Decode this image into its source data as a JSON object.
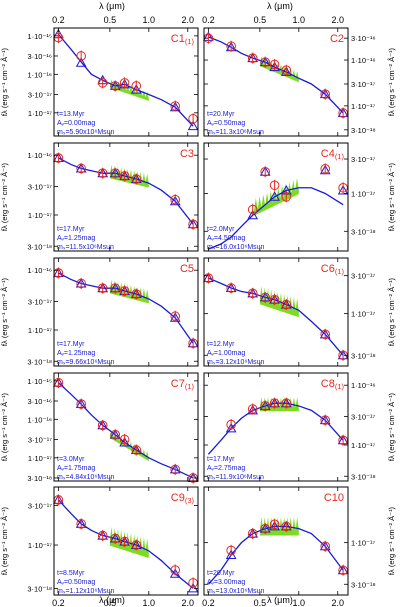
{
  "axes": {
    "x_label": "λ (μm)",
    "y_label_left": "fλ (erg s⁻¹ cm⁻² Å⁻¹)",
    "y_label_right": "fλ (erg s⁻¹ cm⁻² Å⁻¹)",
    "x_ticks": [
      {
        "value": 0.2,
        "label": "0.2"
      },
      {
        "value": 0.5,
        "label": "0.5"
      },
      {
        "value": 1.0,
        "label": "1.0"
      },
      {
        "value": 2.0,
        "label": "2.0"
      }
    ],
    "x_range": [
      0.185,
      2.4
    ],
    "x_scale": "log",
    "y_scale": "log"
  },
  "colors": {
    "model": "#1a1ad9",
    "spectrum": "#7ddc1f",
    "observed": "#e8281e",
    "label": "#e8281e",
    "params": "#1a1ad9",
    "frame": "#000000"
  },
  "chart_data": [
    {
      "type": "line",
      "id": "C1",
      "suffix": "(1)",
      "column": "left",
      "ylim": [
        2.5e-18,
        1.6e-15
      ],
      "yticks": [
        {
          "value": 1e-15,
          "label": "1·10⁻¹⁵"
        },
        {
          "value": 3e-16,
          "label": "3·10⁻¹⁶"
        },
        {
          "value": 1e-16,
          "label": "1·10⁻¹⁶"
        },
        {
          "value": 3e-17,
          "label": "3·10⁻¹⁷"
        },
        {
          "value": 1e-17,
          "label": "1·10⁻¹⁷"
        }
      ],
      "params": [
        "t=13.Myr",
        "Aᵥ=0.00mag",
        "mₛ=5.90x10⁶Msun"
      ],
      "model": {
        "x": [
          0.2,
          0.25,
          0.3,
          0.36,
          0.44,
          0.55,
          0.65,
          0.8,
          1.0,
          1.25,
          1.6,
          2.2
        ],
        "y": [
          1.1e-15,
          4.5e-16,
          2.1e-16,
          1e-16,
          7e-17,
          5e-17,
          5.5e-17,
          4e-17,
          3e-17,
          2.2e-17,
          1.4e-17,
          4.5e-18
        ]
      },
      "observed": {
        "x": [
          0.2,
          0.3,
          0.44,
          0.55,
          0.65,
          0.8,
          1.6,
          2.2
        ],
        "y": [
          9e-16,
          3e-16,
          6e-17,
          5e-17,
          6e-17,
          5e-17,
          1.5e-17,
          7e-18
        ]
      },
      "synthetic": {
        "x": [
          0.2,
          0.3,
          0.44,
          0.55,
          0.65,
          0.8,
          1.6,
          2.2
        ],
        "y": [
          1.1e-15,
          2e-16,
          7e-17,
          5e-17,
          5.5e-17,
          4e-17,
          1.4e-17,
          4.5e-18
        ]
      },
      "spectrum": {
        "x0": 0.5,
        "x1": 1.0,
        "y": [
          5.5e-17,
          2.5e-17
        ]
      }
    },
    {
      "type": "line",
      "id": "C2",
      "suffix": "",
      "column": "right",
      "ylim": [
        2.2e-18,
        5e-16
      ],
      "yticks": [
        {
          "value": 3e-16,
          "label": "3·10⁻¹⁶"
        },
        {
          "value": 1e-16,
          "label": "1·10⁻¹⁶"
        },
        {
          "value": 3e-17,
          "label": "3·10⁻¹⁷"
        },
        {
          "value": 1e-17,
          "label": "1·10⁻¹⁷"
        },
        {
          "value": 3e-18,
          "label": "3·10⁻¹⁸"
        }
      ],
      "params": [
        "t=20.Myr",
        "Aᵥ=0.50mag",
        "mₛ=11.3x10⁶Msun"
      ],
      "model": {
        "x": [
          0.2,
          0.25,
          0.3,
          0.36,
          0.44,
          0.55,
          0.65,
          0.8,
          1.0,
          1.25,
          1.6,
          2.2
        ],
        "y": [
          3.2e-16,
          2.5e-16,
          1.9e-16,
          1.4e-16,
          1.1e-16,
          9e-17,
          7e-17,
          5.5e-17,
          4e-17,
          3e-17,
          1.8e-17,
          7e-18
        ]
      },
      "observed": {
        "x": [
          0.2,
          0.3,
          0.44,
          0.55,
          0.65,
          0.8,
          1.6,
          2.2
        ],
        "y": [
          3e-16,
          2e-16,
          1.1e-16,
          9e-17,
          8e-17,
          6e-17,
          1.8e-17,
          7e-18
        ]
      },
      "synthetic": {
        "x": [
          0.2,
          0.3,
          0.44,
          0.55,
          0.65,
          0.8,
          1.6,
          2.2
        ],
        "y": [
          3.2e-16,
          1.9e-16,
          1.1e-16,
          9e-17,
          7e-17,
          5.5e-17,
          1.8e-17,
          7e-18
        ]
      },
      "spectrum": {
        "x0": 0.5,
        "x1": 1.0,
        "y": [
          9e-17,
          4e-17
        ]
      }
    },
    {
      "type": "line",
      "id": "C3",
      "suffix": "",
      "column": "left",
      "ylim": [
        2.5e-18,
        1.6e-16
      ],
      "yticks": [
        {
          "value": 1e-16,
          "label": "1·10⁻¹⁶"
        },
        {
          "value": 3e-17,
          "label": "3·10⁻¹⁷"
        },
        {
          "value": 1e-17,
          "label": "1·10⁻¹⁷"
        },
        {
          "value": 3e-18,
          "label": "3·10⁻¹⁸"
        }
      ],
      "params": [
        "t=17.Myr",
        "Aᵥ=1.25mag",
        "mₛ=11.5x10⁶Msun"
      ],
      "model": {
        "x": [
          0.2,
          0.25,
          0.3,
          0.36,
          0.44,
          0.55,
          0.65,
          0.8,
          1.0,
          1.25,
          1.6,
          2.2
        ],
        "y": [
          9e-17,
          7e-17,
          6e-17,
          5.5e-17,
          5e-17,
          5e-17,
          4.5e-17,
          4e-17,
          3.4e-17,
          2.6e-17,
          1.7e-17,
          7e-18
        ]
      },
      "observed": {
        "x": [
          0.2,
          0.3,
          0.44,
          0.55,
          0.65,
          0.8,
          1.6,
          2.2
        ],
        "y": [
          9e-17,
          6e-17,
          5e-17,
          5e-17,
          4.5e-17,
          4e-17,
          1.8e-17,
          7e-18
        ]
      },
      "synthetic": {
        "x": [
          0.2,
          0.3,
          0.44,
          0.55,
          0.65,
          0.8,
          1.6,
          2.2
        ],
        "y": [
          9e-17,
          6e-17,
          5e-17,
          5e-17,
          4.5e-17,
          4e-17,
          1.7e-17,
          7e-18
        ]
      },
      "spectrum": {
        "x0": 0.5,
        "x1": 1.0,
        "y": [
          5e-17,
          3.5e-17
        ]
      }
    },
    {
      "type": "line",
      "id": "C4",
      "suffix": "(1)",
      "column": "right",
      "ylim": [
        1.6e-18,
        5e-17
      ],
      "yticks": [
        {
          "value": 3e-17,
          "label": "3·10⁻¹⁷"
        },
        {
          "value": 1e-17,
          "label": "1·10⁻¹⁷"
        },
        {
          "value": 3e-18,
          "label": "3·10⁻¹⁸"
        }
      ],
      "params": [
        "t=2.0Myr",
        "Aᵥ=4.50mag",
        "mₛ=16.0x10⁶Msun"
      ],
      "model": {
        "x": [
          0.2,
          0.25,
          0.3,
          0.36,
          0.44,
          0.55,
          0.65,
          0.8,
          1.0,
          1.25,
          1.6,
          2.2
        ],
        "y": [
          1.7e-18,
          2e-18,
          2.5e-18,
          3.5e-18,
          5e-18,
          7e-18,
          9e-18,
          1.1e-17,
          1.2e-17,
          1.2e-17,
          1e-17,
          7e-18
        ]
      },
      "observed": {
        "x": [
          0.44,
          0.55,
          0.65,
          0.8,
          1.6,
          2.2
        ],
        "y": [
          6e-18,
          2e-17,
          1.3e-17,
          9e-18,
          2.2e-17,
          1.2e-17
        ]
      },
      "synthetic": {
        "x": [
          0.44,
          0.55,
          0.65,
          0.8,
          1.6,
          2.2
        ],
        "y": [
          5e-18,
          2e-17,
          9e-18,
          1.1e-17,
          2.1e-17,
          1.1e-17
        ]
      },
      "spectrum": {
        "x0": 0.45,
        "x1": 1.0,
        "y": [
          6e-18,
          1.2e-17
        ]
      }
    },
    {
      "type": "line",
      "id": "C5",
      "suffix": "",
      "column": "left",
      "ylim": [
        2.5e-18,
        1.6e-16
      ],
      "yticks": [
        {
          "value": 1e-16,
          "label": "1·10⁻¹⁶"
        },
        {
          "value": 3e-17,
          "label": "3·10⁻¹⁷"
        },
        {
          "value": 1e-17,
          "label": "1·10⁻¹⁷"
        },
        {
          "value": 3e-18,
          "label": "3·10⁻¹⁸"
        }
      ],
      "params": [
        "t=17.Myr",
        "Aᵥ=1.25mag",
        "mₛ=9.66x10⁶Msun"
      ],
      "model": {
        "x": [
          0.2,
          0.25,
          0.3,
          0.36,
          0.44,
          0.55,
          0.65,
          0.8,
          1.0,
          1.25,
          1.6,
          2.2
        ],
        "y": [
          9e-17,
          7e-17,
          6e-17,
          5.5e-17,
          5e-17,
          5e-17,
          4.5e-17,
          4e-17,
          3.3e-17,
          2.5e-17,
          1.6e-17,
          6e-18
        ]
      },
      "observed": {
        "x": [
          0.2,
          0.3,
          0.44,
          0.55,
          0.65,
          0.8,
          1.6,
          2.2
        ],
        "y": [
          9e-17,
          6e-17,
          5e-17,
          5e-17,
          4.5e-17,
          4e-17,
          1.7e-17,
          6e-18
        ]
      },
      "synthetic": {
        "x": [
          0.2,
          0.3,
          0.44,
          0.55,
          0.65,
          0.8,
          1.6,
          2.2
        ],
        "y": [
          9e-17,
          6e-17,
          5e-17,
          5e-17,
          4.5e-17,
          4e-17,
          1.6e-17,
          6e-18
        ]
      },
      "spectrum": {
        "x0": 0.5,
        "x1": 1.0,
        "y": [
          5e-17,
          3.4e-17
        ]
      }
    },
    {
      "type": "line",
      "id": "C6",
      "suffix": "(1)",
      "column": "right",
      "ylim": [
        2.2e-18,
        5e-17
      ],
      "yticks": [
        {
          "value": 3e-17,
          "label": "3·10⁻¹⁷"
        },
        {
          "value": 1e-17,
          "label": "1·10⁻¹⁷"
        },
        {
          "value": 3e-18,
          "label": "3·10⁻¹⁸"
        }
      ],
      "params": [
        "t=12.Myr",
        "Aᵥ=1.00mag",
        "mₛ=3.12x10⁶Msun"
      ],
      "model": {
        "x": [
          0.2,
          0.25,
          0.3,
          0.36,
          0.44,
          0.55,
          0.65,
          0.8,
          1.0,
          1.25,
          1.6,
          2.2
        ],
        "y": [
          2.8e-17,
          2.4e-17,
          2.1e-17,
          1.9e-17,
          1.8e-17,
          1.6e-17,
          1.5e-17,
          1.3e-17,
          1.1e-17,
          8e-18,
          5.5e-18,
          3e-18
        ]
      },
      "observed": {
        "x": [
          0.2,
          0.3,
          0.44,
          0.55,
          0.65,
          0.8,
          1.6,
          2.2
        ],
        "y": [
          2.8e-17,
          2.1e-17,
          1.8e-17,
          1.6e-17,
          1.5e-17,
          1.3e-17,
          5.5e-18,
          3e-18
        ]
      },
      "synthetic": {
        "x": [
          0.2,
          0.3,
          0.44,
          0.55,
          0.65,
          0.8,
          1.6,
          2.2
        ],
        "y": [
          2.8e-17,
          2.1e-17,
          1.8e-17,
          1.6e-17,
          1.5e-17,
          1.3e-17,
          5.5e-18,
          3e-18
        ]
      },
      "spectrum": {
        "x0": 0.5,
        "x1": 1.0,
        "y": [
          1.6e-17,
          1.1e-17
        ]
      }
    },
    {
      "type": "line",
      "id": "C7",
      "suffix": "(1)",
      "column": "left",
      "ylim": [
        2.5e-18,
        1.6e-15
      ],
      "yticks": [
        {
          "value": 1e-15,
          "label": "1·10⁻¹⁵"
        },
        {
          "value": 3e-16,
          "label": "3·10⁻¹⁶"
        },
        {
          "value": 1e-16,
          "label": "1·10⁻¹⁶"
        },
        {
          "value": 3e-17,
          "label": "3·10⁻¹⁷"
        },
        {
          "value": 1e-17,
          "label": "1·10⁻¹⁷"
        },
        {
          "value": 3e-18,
          "label": "3·10⁻¹⁸"
        }
      ],
      "params": [
        "t=3.0Myr",
        "Aᵥ=1.75mag",
        "mₛ=4.84x10⁶Msun"
      ],
      "model": {
        "x": [
          0.2,
          0.25,
          0.3,
          0.36,
          0.44,
          0.55,
          0.65,
          0.8,
          1.0,
          1.25,
          1.6,
          2.2
        ],
        "y": [
          9e-16,
          4.5e-16,
          2.5e-16,
          1.3e-16,
          7e-17,
          4e-17,
          2.5e-17,
          1.6e-17,
          1e-17,
          7e-18,
          5e-18,
          3e-18
        ]
      },
      "observed": {
        "x": [
          0.2,
          0.3,
          0.44,
          0.55,
          0.65,
          0.8,
          1.6,
          2.2
        ],
        "y": [
          9e-16,
          2.5e-16,
          7e-17,
          4e-17,
          3e-17,
          1.6e-17,
          5e-18,
          3e-18
        ]
      },
      "synthetic": {
        "x": [
          0.2,
          0.3,
          0.44,
          0.55,
          0.65,
          0.8,
          1.6,
          2.2
        ],
        "y": [
          9e-16,
          2.5e-16,
          7e-17,
          4e-17,
          2.5e-17,
          1.6e-17,
          5e-18,
          3e-18
        ]
      },
      "spectrum": {
        "x0": 0.5,
        "x1": 1.0,
        "y": [
          4e-17,
          1e-17
        ]
      }
    },
    {
      "type": "line",
      "id": "C8",
      "suffix": "(1)",
      "column": "right",
      "ylim": [
        2.5e-18,
        1.6e-16
      ],
      "yticks": [
        {
          "value": 1e-16,
          "label": "1·10⁻¹⁶"
        },
        {
          "value": 3e-17,
          "label": "3·10⁻¹⁷"
        },
        {
          "value": 1e-17,
          "label": "1·10⁻¹⁷"
        },
        {
          "value": 3e-18,
          "label": "3·10⁻¹⁸"
        }
      ],
      "params": [
        "t=17.Myr",
        "Aᵥ=2.75mag",
        "mₛ=11.9x10⁶Msun"
      ],
      "model": {
        "x": [
          0.2,
          0.25,
          0.3,
          0.36,
          0.44,
          0.55,
          0.65,
          0.8,
          1.0,
          1.25,
          1.6,
          2.2
        ],
        "y": [
          7e-18,
          1.2e-17,
          1.9e-17,
          2.8e-17,
          3.8e-17,
          4.5e-17,
          5e-17,
          5e-17,
          4.5e-17,
          3.8e-17,
          2.6e-17,
          1.2e-17
        ]
      },
      "observed": {
        "x": [
          0.3,
          0.44,
          0.55,
          0.65,
          0.8,
          1.6,
          2.2
        ],
        "y": [
          2.2e-17,
          4e-17,
          4.5e-17,
          5e-17,
          5e-17,
          2.6e-17,
          1.2e-17
        ]
      },
      "synthetic": {
        "x": [
          0.3,
          0.44,
          0.55,
          0.65,
          0.8,
          1.6,
          2.2
        ],
        "y": [
          1.9e-17,
          3.8e-17,
          4.5e-17,
          5e-17,
          5e-17,
          2.6e-17,
          1.2e-17
        ]
      },
      "spectrum": {
        "x0": 0.5,
        "x1": 1.0,
        "y": [
          4.5e-17,
          4.5e-17
        ]
      }
    },
    {
      "type": "line",
      "id": "C9",
      "suffix": "(3)",
      "column": "left",
      "ylim": [
        2.5e-18,
        5e-17
      ],
      "yticks": [
        {
          "value": 3e-17,
          "label": "3·10⁻¹⁷"
        },
        {
          "value": 1e-17,
          "label": "1·10⁻¹⁷"
        },
        {
          "value": 3e-18,
          "label": "3·10⁻¹⁸"
        }
      ],
      "params": [
        "t=8.5Myr",
        "Aᵥ=0.50mag",
        "mₛ=1.12x10⁶Msun"
      ],
      "model": {
        "x": [
          0.2,
          0.25,
          0.3,
          0.36,
          0.44,
          0.55,
          0.65,
          0.8,
          1.0,
          1.25,
          1.6,
          2.2
        ],
        "y": [
          3.5e-17,
          2.4e-17,
          1.8e-17,
          1.5e-17,
          1.3e-17,
          1.2e-17,
          1.1e-17,
          1e-17,
          8.5e-18,
          6.5e-18,
          4.5e-18,
          3e-18
        ]
      },
      "observed": {
        "x": [
          0.2,
          0.3,
          0.44,
          0.55,
          0.65,
          0.8,
          1.6,
          2.2
        ],
        "y": [
          3.5e-17,
          1.8e-17,
          1.3e-17,
          1.2e-17,
          1.1e-17,
          1e-17,
          5e-18,
          3.5e-18
        ]
      },
      "synthetic": {
        "x": [
          0.2,
          0.3,
          0.44,
          0.55,
          0.65,
          0.8,
          1.6,
          2.2
        ],
        "y": [
          3.5e-17,
          1.8e-17,
          1.3e-17,
          1.2e-17,
          1.1e-17,
          1e-17,
          4.5e-18,
          3e-18
        ]
      },
      "spectrum": {
        "x0": 0.5,
        "x1": 1.0,
        "y": [
          1.2e-17,
          8.5e-18
        ]
      }
    },
    {
      "type": "line",
      "id": "C10",
      "suffix": "",
      "column": "right",
      "ylim": [
        2.2e-18,
        5e-17
      ],
      "yticks": [
        {
          "value": 1e-17,
          "label": "1·10⁻¹⁷"
        },
        {
          "value": 3e-18,
          "label": "3·10⁻¹⁸"
        }
      ],
      "params": [
        "t=20.Myr",
        "Aᵥ=3.00mag",
        "mₛ=13.0x10⁶Msun"
      ],
      "model": {
        "x": [
          0.2,
          0.25,
          0.3,
          0.36,
          0.44,
          0.55,
          0.65,
          0.8,
          1.0,
          1.25,
          1.6,
          2.2
        ],
        "y": [
          3e-18,
          4.5e-18,
          7e-18,
          1e-17,
          1.3e-17,
          1.5e-17,
          1.6e-17,
          1.6e-17,
          1.5e-17,
          1.3e-17,
          9e-18,
          4.5e-18
        ]
      },
      "observed": {
        "x": [
          0.3,
          0.44,
          0.55,
          0.65,
          0.8,
          1.6,
          2.2
        ],
        "y": [
          8e-18,
          1.3e-17,
          1.5e-17,
          1.7e-17,
          1.6e-17,
          9e-18,
          4.5e-18
        ]
      },
      "synthetic": {
        "x": [
          0.3,
          0.44,
          0.55,
          0.65,
          0.8,
          1.6,
          2.2
        ],
        "y": [
          7e-18,
          1.3e-17,
          1.5e-17,
          1.6e-17,
          1.6e-17,
          9e-18,
          4.5e-18
        ]
      },
      "spectrum": {
        "x0": 0.5,
        "x1": 1.0,
        "y": [
          1.5e-17,
          1.5e-17
        ]
      }
    }
  ]
}
